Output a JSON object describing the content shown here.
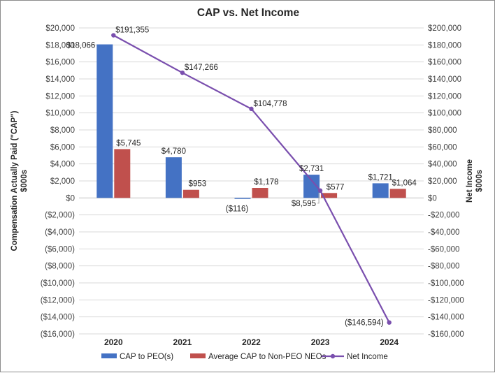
{
  "chart_data": {
    "type": "bar",
    "title": "CAP vs. Net Income",
    "categories": [
      "2020",
      "2021",
      "2022",
      "2023",
      "2024"
    ],
    "ylabel": [
      "Compensation Actually Paid (\"CAP\")",
      "$000s"
    ],
    "y2label": [
      "Net Income",
      "$000s"
    ],
    "ylim": [
      -16000,
      20000
    ],
    "y2lim": [
      -160000,
      200000
    ],
    "y_ticks": [
      20000,
      18000,
      16000,
      14000,
      12000,
      10000,
      8000,
      6000,
      4000,
      2000,
      0,
      -2000,
      -4000,
      -6000,
      -8000,
      -10000,
      -12000,
      -14000,
      -16000
    ],
    "y_tick_labels": [
      "$20,000",
      "$18,000",
      "$16,000",
      "$14,000",
      "$12,000",
      "$10,000",
      "$8,000",
      "$6,000",
      "$4,000",
      "$2,000",
      "$0",
      "($2,000)",
      "($4,000)",
      "($6,000)",
      "($8,000)",
      "($10,000)",
      "($12,000)",
      "($14,000)",
      "($16,000)"
    ],
    "y2_ticks": [
      200000,
      180000,
      160000,
      140000,
      120000,
      100000,
      80000,
      60000,
      40000,
      20000,
      0,
      -20000,
      -40000,
      -60000,
      -80000,
      -100000,
      -120000,
      -140000,
      -160000
    ],
    "y2_tick_labels": [
      "$200,000",
      "$180,000",
      "$160,000",
      "$140,000",
      "$120,000",
      "$100,000",
      "$80,000",
      "$60,000",
      "$40,000",
      "$20,000",
      "$0",
      "-$20,000",
      "-$40,000",
      "-$60,000",
      "-$80,000",
      "-$100,000",
      "-$120,000",
      "-$140,000",
      "-$160,000"
    ],
    "series": [
      {
        "name": "CAP to PEO(s)",
        "kind": "bar",
        "axis": "left",
        "color": "#4472c4",
        "values": [
          18066,
          4780,
          -116,
          2731,
          1721
        ],
        "labels": [
          "$18,066",
          "$4,780",
          "($116)",
          "$2,731",
          "$1,721"
        ]
      },
      {
        "name": "Average CAP to Non-PEO NEOs",
        "kind": "bar",
        "axis": "left",
        "color": "#c0504d",
        "values": [
          5745,
          953,
          1178,
          577,
          1064
        ],
        "labels": [
          "$5,745",
          "$953",
          "$1,178",
          "$577",
          "$1,064"
        ]
      },
      {
        "name": "Net Income",
        "kind": "line",
        "axis": "right",
        "color": "#7a4fae",
        "values": [
          191355,
          147266,
          104778,
          8595,
          -146594
        ],
        "labels": [
          "$191,355",
          "$147,266",
          "$104,778",
          "$8,595",
          "($146,594)"
        ]
      }
    ],
    "legend_position": "bottom"
  }
}
